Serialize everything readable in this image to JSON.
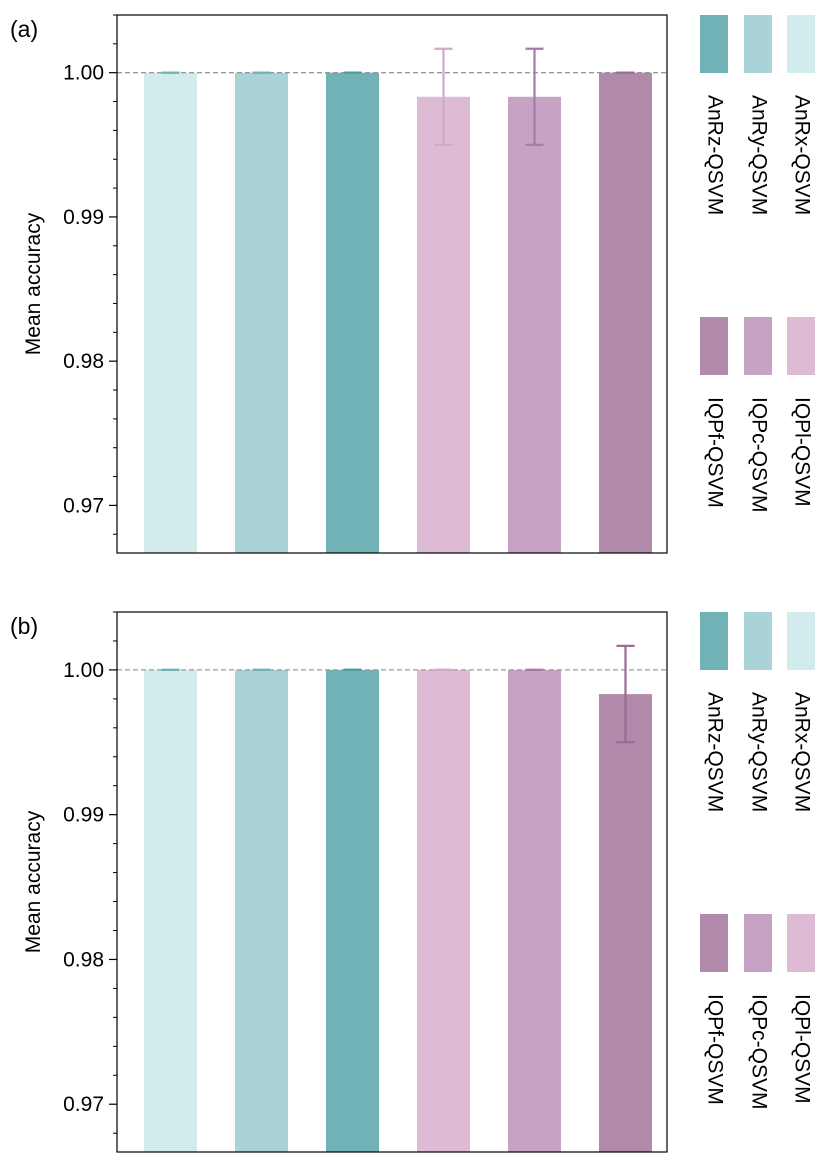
{
  "chart_data": [
    {
      "type": "bar",
      "panel_label": "(a)",
      "ylabel": "Mean accuracy",
      "ylim": [
        0.9667,
        1.004
      ],
      "yticks": [
        0.97,
        0.98,
        0.99,
        1.0
      ],
      "ytick_labels": [
        "0.97",
        "0.98",
        "0.99",
        "1.00"
      ],
      "reference_line": 1.0,
      "categories": [
        "AnRx-QSVM",
        "AnRy-QSVM",
        "AnRz-QSVM",
        "IQPl-QSVM",
        "IQPc-QSVM",
        "IQPf-QSVM"
      ],
      "values": [
        1.0,
        1.0,
        1.0,
        0.99833,
        0.99833,
        1.0
      ],
      "errors": [
        0,
        0,
        0,
        0.00333,
        0.00333,
        0
      ],
      "colors": [
        "#d2ebed",
        "#aad3d8",
        "#71b2b7",
        "#ddbbd5",
        "#c6a2c4",
        "#b18aab"
      ],
      "error_colors": [
        "#71b2b7",
        "#71b2b7",
        "#4f9aa0",
        "#d2a8c8",
        "#a979a7",
        "#9b6b94"
      ]
    },
    {
      "type": "bar",
      "panel_label": "(b)",
      "ylabel": "Mean accuracy",
      "ylim": [
        0.9667,
        1.004
      ],
      "yticks": [
        0.97,
        0.98,
        0.99,
        1.0
      ],
      "ytick_labels": [
        "0.97",
        "0.98",
        "0.99",
        "1.00"
      ],
      "reference_line": 1.0,
      "categories": [
        "AnRx-QSVM",
        "AnRy-QSVM",
        "AnRz-QSVM",
        "IQPl-QSVM",
        "IQPc-QSVM",
        "IQPf-QSVM"
      ],
      "values": [
        1.0,
        1.0,
        1.0,
        1.0,
        1.0,
        0.99833
      ],
      "errors": [
        0,
        0,
        0,
        0,
        0,
        0.00333
      ],
      "colors": [
        "#d2ebed",
        "#aad3d8",
        "#71b2b7",
        "#ddbbd5",
        "#c6a2c4",
        "#b18aab"
      ],
      "error_colors": [
        "#71b2b7",
        "#71b2b7",
        "#4f9aa0",
        "#d2a8c8",
        "#a979a7",
        "#9b6b94"
      ]
    }
  ],
  "legend": {
    "groups": [
      {
        "entries": [
          {
            "label": "AnRz-QSVM",
            "color": "#71b2b7"
          },
          {
            "label": "AnRy-QSVM",
            "color": "#aad3d8"
          },
          {
            "label": "AnRx-QSVM",
            "color": "#d2ebed"
          }
        ]
      },
      {
        "entries": [
          {
            "label": "IQPf-QSVM",
            "color": "#b18aab"
          },
          {
            "label": "IQPc-QSVM",
            "color": "#c6a2c4"
          },
          {
            "label": "IQPl-QSVM",
            "color": "#ddbbd5"
          }
        ]
      }
    ]
  }
}
